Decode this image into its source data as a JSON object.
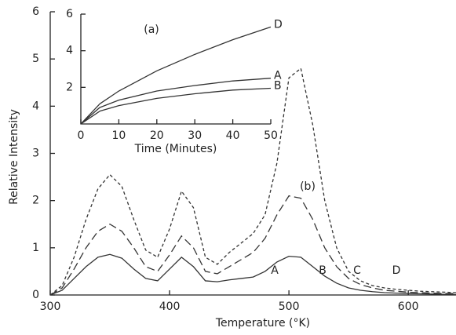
{
  "chart_data": [
    {
      "type": "line",
      "x_label": "Temperature (°K)",
      "y_label": "Relative Intensity",
      "annotations": [
        "A",
        "B",
        "C",
        "D",
        "(b)"
      ],
      "xlim": [
        300,
        640
      ],
      "xticks": [
        300,
        400,
        500,
        600
      ],
      "ylim": [
        0,
        6
      ],
      "yticks": [
        0,
        1,
        2,
        3,
        4,
        5,
        6
      ],
      "x": [
        300,
        310,
        320,
        330,
        340,
        350,
        360,
        370,
        380,
        390,
        400,
        410,
        420,
        430,
        440,
        450,
        460,
        470,
        480,
        490,
        500,
        510,
        520,
        530,
        540,
        550,
        560,
        570,
        580,
        590,
        600,
        610,
        620,
        630,
        640
      ],
      "series": [
        {
          "color": "#333333",
          "style": "solid",
          "values": [
            0,
            0.1,
            0.35,
            0.6,
            0.8,
            0.86,
            0.78,
            0.55,
            0.35,
            0.3,
            0.55,
            0.8,
            0.6,
            0.3,
            0.28,
            0.32,
            0.35,
            0.38,
            0.5,
            0.7,
            0.82,
            0.8,
            0.6,
            0.4,
            0.25,
            0.15,
            0.1,
            0.07,
            0.05,
            0.04,
            0.03,
            0.025,
            0.02,
            0.015,
            0.01
          ]
        },
        {
          "color": "#333333",
          "style": "dashed",
          "values": [
            0,
            0.15,
            0.55,
            1.0,
            1.35,
            1.5,
            1.35,
            1.0,
            0.6,
            0.5,
            0.85,
            1.25,
            1.0,
            0.5,
            0.45,
            0.6,
            0.75,
            0.9,
            1.2,
            1.7,
            2.1,
            2.05,
            1.6,
            1.0,
            0.6,
            0.35,
            0.22,
            0.15,
            0.1,
            0.08,
            0.06,
            0.05,
            0.04,
            0.03,
            0.03
          ]
        },
        {
          "color": "#333333",
          "style": "dotted",
          "values": [
            0,
            0.2,
            0.8,
            1.6,
            2.25,
            2.55,
            2.3,
            1.6,
            0.95,
            0.8,
            1.4,
            2.2,
            1.85,
            0.8,
            0.65,
            0.9,
            1.1,
            1.3,
            1.7,
            2.8,
            4.6,
            4.8,
            3.6,
            2.0,
            1.0,
            0.5,
            0.3,
            0.2,
            0.15,
            0.12,
            0.1,
            0.08,
            0.07,
            0.06,
            0.05
          ]
        }
      ]
    },
    {
      "type": "line",
      "x_label": "Time (Minutes)",
      "annotations": [
        "(a)"
      ],
      "xlim": [
        0,
        50
      ],
      "xticks": [
        0,
        10,
        20,
        30,
        40,
        50
      ],
      "ylim": [
        0,
        6
      ],
      "yticks": [
        2,
        4,
        6
      ],
      "x": [
        0,
        5,
        10,
        20,
        30,
        40,
        50
      ],
      "series": [
        {
          "name": "D",
          "color": "#333333",
          "style": "solid",
          "values": [
            0,
            1.1,
            1.8,
            2.9,
            3.8,
            4.6,
            5.3
          ]
        },
        {
          "name": "A",
          "color": "#333333",
          "style": "solid",
          "values": [
            0,
            0.9,
            1.3,
            1.8,
            2.1,
            2.35,
            2.5
          ]
        },
        {
          "name": "B",
          "color": "#333333",
          "style": "solid",
          "values": [
            0,
            0.7,
            1.0,
            1.4,
            1.65,
            1.85,
            1.95
          ]
        }
      ]
    }
  ]
}
